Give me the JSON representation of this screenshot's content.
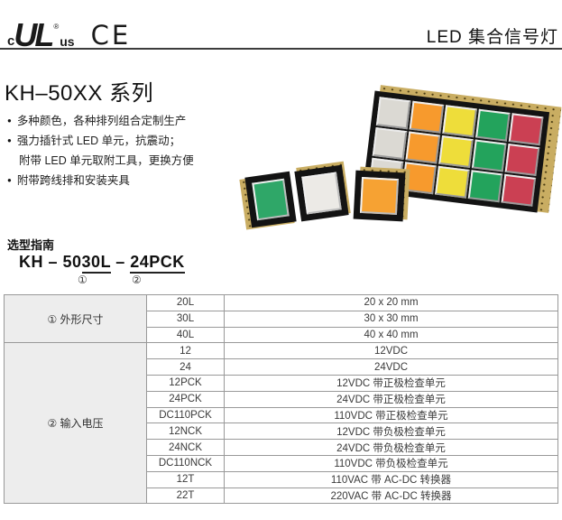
{
  "header": {
    "ul": {
      "c": "c",
      "letters": "UL",
      "reg": "®",
      "us": "us"
    },
    "ce": "CE",
    "title": "LED 集合信号灯"
  },
  "series": {
    "title": "KH–50XX 系列"
  },
  "features": [
    {
      "text": "多种颜色，各种排列组合定制生产"
    },
    {
      "text": "强力插针式 LED 单元，抗震动；"
    },
    {
      "text": "附带 LED 单元取附工具，更换方便"
    },
    {
      "text": "附带跨线排和安装夹具"
    }
  ],
  "selection_guide": {
    "heading": "选型指南",
    "model": {
      "prefix": "KH – 50",
      "dim_code": "30L",
      "separator": " – ",
      "voltage_code": "24PCK"
    },
    "markers": {
      "dim": "①",
      "voltage": "②"
    }
  },
  "spec_table": {
    "sections": [
      {
        "label": "① 外形尺寸",
        "rows": [
          {
            "code": "20L",
            "desc": "20 x 20 mm"
          },
          {
            "code": "30L",
            "desc": "30 x 30 mm"
          },
          {
            "code": "40L",
            "desc": "40 x 40 mm"
          }
        ]
      },
      {
        "label": "② 输入电压",
        "rows": [
          {
            "code": "12",
            "desc": "12VDC"
          },
          {
            "code": "24",
            "desc": "24VDC"
          },
          {
            "code": "12PCK",
            "desc": "12VDC 带正极检查单元"
          },
          {
            "code": "24PCK",
            "desc": "24VDC 带正极检查单元"
          },
          {
            "code": "DC110PCK",
            "desc": "110VDC 带正极检查单元"
          },
          {
            "code": "12NCK",
            "desc": "12VDC 带负极检查单元"
          },
          {
            "code": "24NCK",
            "desc": "24VDC 带负极检查单元"
          },
          {
            "code": "DC110NCK",
            "desc": "110VDC 带负极检查单元"
          },
          {
            "code": "12T",
            "desc": "110VAC 带 AC-DC 转换器"
          },
          {
            "code": "22T",
            "desc": "220VAC 带 AC-DC 转换器"
          }
        ]
      }
    ]
  },
  "product_photo": {
    "matrix_column_colors": [
      "#dbd9d3",
      "#f79a2d",
      "#eedd3a",
      "#23a35c",
      "#cb4053"
    ],
    "unit_lens_colors": {
      "green": "#2fa768",
      "white": "#eceae6",
      "orange": "#f6a233"
    },
    "housing_color": "#c9ad62",
    "bezel_color": "#131313"
  }
}
